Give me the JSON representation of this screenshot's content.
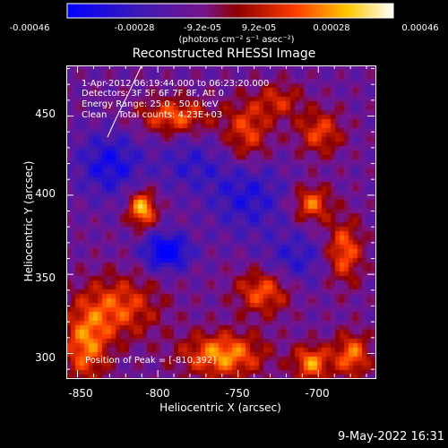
{
  "colorbar": {
    "ticks": [
      "-0.00046",
      "-0.00028",
      "-9.2e-05",
      "9.2e-05",
      "0.00028",
      "0.00046"
    ],
    "unit_label": "(photons cm⁻² s⁻¹ asec⁻²)"
  },
  "chart_data": {
    "type": "heatmap",
    "title": "Reconstructed RHESSI Image",
    "xlabel": "Heliocentric X (arcsec)",
    "ylabel": "Heliocentric Y (arcsec)",
    "xlim": [
      -857,
      -665
    ],
    "ylim": [
      285,
      482
    ],
    "x_ticks": [
      "-850",
      "-800",
      "-750",
      "-700"
    ],
    "y_ticks": [
      "450",
      "400",
      "350",
      "300"
    ],
    "colorbar_range": [
      -0.00046,
      0.00046
    ],
    "colormap": "blue-purple-red-yellow-white",
    "annotations": [
      "1-Apr-2012 06:19:44.000 to 06:23:20.000",
      "Detectors: 3F 5F 6F 7F 8F, Att 0",
      "Energy Range: 25.0 - 50.0 keV",
      "Clean    Total counts: 4.23E+03",
      "Position of Peak = [-810,392]"
    ],
    "peak": [
      -810,
      392
    ],
    "blobs": [
      {
        "x": -810,
        "y": 392,
        "v": 0.00046,
        "sx": 6,
        "sy": 8
      },
      {
        "x": -760,
        "y": 300,
        "v": 0.0004,
        "sx": 18,
        "sy": 10
      },
      {
        "x": -735,
        "y": 340,
        "v": 0.00032,
        "sx": 12,
        "sy": 10
      },
      {
        "x": -705,
        "y": 295,
        "v": 0.00038,
        "sx": 8,
        "sy": 8
      },
      {
        "x": -680,
        "y": 300,
        "v": 0.00035,
        "sx": 8,
        "sy": 10
      },
      {
        "x": -825,
        "y": 330,
        "v": 0.0003,
        "sx": 18,
        "sy": 14
      },
      {
        "x": -845,
        "y": 305,
        "v": 0.00034,
        "sx": 10,
        "sy": 16
      },
      {
        "x": -790,
        "y": 450,
        "v": 0.00032,
        "sx": 16,
        "sy": 8
      },
      {
        "x": -745,
        "y": 440,
        "v": 0.00028,
        "sx": 10,
        "sy": 14
      },
      {
        "x": -705,
        "y": 395,
        "v": 0.00034,
        "sx": 8,
        "sy": 8
      },
      {
        "x": -685,
        "y": 365,
        "v": 0.00034,
        "sx": 8,
        "sy": 14
      },
      {
        "x": -700,
        "y": 440,
        "v": 0.00028,
        "sx": 10,
        "sy": 10
      },
      {
        "x": -725,
        "y": 460,
        "v": 0.00022,
        "sx": 10,
        "sy": 8
      },
      {
        "x": -830,
        "y": 420,
        "v": -0.00026,
        "sx": 14,
        "sy": 14
      },
      {
        "x": -795,
        "y": 365,
        "v": -0.0004,
        "sx": 10,
        "sy": 8
      },
      {
        "x": -745,
        "y": 400,
        "v": -0.00022,
        "sx": 16,
        "sy": 16
      },
      {
        "x": -715,
        "y": 360,
        "v": -0.00018,
        "sx": 14,
        "sy": 12
      },
      {
        "x": -780,
        "y": 420,
        "v": -0.00016,
        "sx": 14,
        "sy": 12
      }
    ]
  },
  "timestamp": "9-May-2022 16:31"
}
